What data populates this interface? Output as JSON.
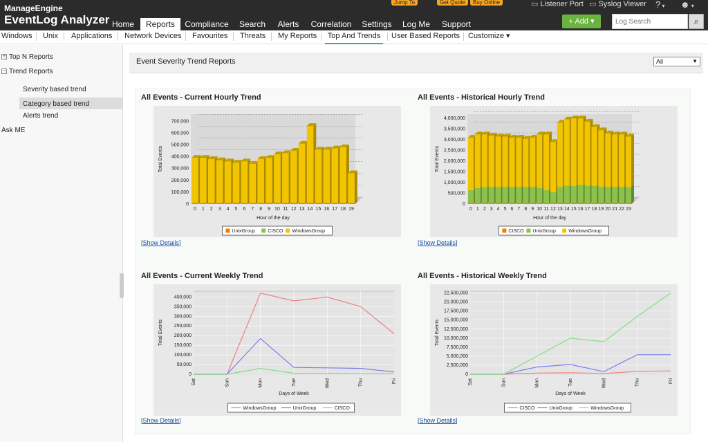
{
  "header": {
    "brand_top": "ManageEngine",
    "brand_main": "EventLog Analyzer",
    "top_pills": [
      "Jump To",
      "Get Quote",
      "Buy Online"
    ],
    "top_links": [
      "Listener Port",
      "Syslog Viewer",
      "?"
    ],
    "nav": [
      "Home",
      "Reports",
      "Compliance",
      "Search",
      "Alerts",
      "Correlation",
      "Settings",
      "Log Me",
      "Support"
    ],
    "active_nav": "Reports",
    "add_label": "+ Add ▾",
    "search_placeholder": "Log Search",
    "colors": {
      "topbar": "#2b2b2b",
      "accent": "#69b33e",
      "pill": "#f6a623"
    }
  },
  "subnav": {
    "items": [
      "Windows",
      "Unix",
      "Applications",
      "Network Devices",
      "Favourites",
      "Threats",
      "My Reports",
      "Top And Trends",
      "User Based Reports",
      "Customize ▾"
    ],
    "active": "Top And Trends"
  },
  "sidebar": {
    "top_n": "Top N Reports",
    "trend": "Trend Reports",
    "children": [
      "Severity based trend",
      "Category based trend",
      "Alerts trend"
    ],
    "selected": "Category based trend",
    "ask_me": "Ask ME"
  },
  "main": {
    "title": "Event Severity Trend Reports",
    "filter_value": "All",
    "show_details": "Show Details"
  },
  "chart_data": [
    {
      "type": "bar",
      "title": "All Events - Current Hourly Trend",
      "xlabel": "Hour of the day",
      "ylabel": "Total Events",
      "categories": [
        "0",
        "1",
        "2",
        "3",
        "4",
        "5",
        "6",
        "7",
        "8",
        "9",
        "10",
        "11",
        "12",
        "13",
        "14",
        "15",
        "16",
        "17",
        "18",
        "19"
      ],
      "series": [
        {
          "name": "UnixGroup",
          "color": "#f57c00",
          "values": [
            10000,
            10000,
            10000,
            10000,
            10000,
            10000,
            10000,
            10000,
            10000,
            10000,
            10000,
            10000,
            10000,
            10000,
            10000,
            10000,
            10000,
            10000,
            10000,
            10000
          ]
        },
        {
          "name": "CISCO",
          "color": "#8bc34a",
          "values": [
            0,
            0,
            0,
            0,
            0,
            0,
            0,
            0,
            0,
            0,
            0,
            0,
            0,
            0,
            0,
            0,
            0,
            0,
            0,
            0
          ]
        },
        {
          "name": "WindowsGroup",
          "color": "#f2c500",
          "values": [
            380000,
            380000,
            370000,
            360000,
            350000,
            340000,
            350000,
            330000,
            370000,
            380000,
            410000,
            420000,
            440000,
            500000,
            650000,
            450000,
            450000,
            460000,
            470000,
            250000
          ]
        }
      ],
      "yticks": [
        "0",
        "100,000",
        "200,000",
        "300,000",
        "400,000",
        "500,000",
        "600,000",
        "700,000"
      ],
      "ylim": [
        0,
        760000
      ]
    },
    {
      "type": "bar",
      "title": "All Events - Historical Hourly Trend",
      "xlabel": "Hour of the day",
      "ylabel": "Total Events",
      "categories": [
        "0",
        "1",
        "2",
        "3",
        "4",
        "5",
        "6",
        "7",
        "8",
        "9",
        "10",
        "11",
        "12",
        "13",
        "14",
        "15",
        "16",
        "17",
        "18",
        "19",
        "20",
        "21",
        "22",
        "23"
      ],
      "series": [
        {
          "name": "CISCO",
          "color": "#f57c00",
          "values": [
            50000,
            50000,
            50000,
            50000,
            50000,
            50000,
            50000,
            50000,
            50000,
            50000,
            50000,
            50000,
            50000,
            50000,
            50000,
            50000,
            50000,
            50000,
            50000,
            50000,
            50000,
            50000,
            50000,
            50000
          ]
        },
        {
          "name": "UnixGroup",
          "color": "#8bc34a",
          "values": [
            600000,
            700000,
            750000,
            750000,
            750000,
            750000,
            750000,
            750000,
            750000,
            750000,
            700000,
            600000,
            500000,
            750000,
            800000,
            800000,
            850000,
            800000,
            800000,
            750000,
            750000,
            750000,
            750000,
            750000
          ]
        },
        {
          "name": "WindowsGroup",
          "color": "#f2c500",
          "values": [
            2450000,
            2500000,
            2450000,
            2400000,
            2350000,
            2350000,
            2300000,
            2300000,
            2250000,
            2300000,
            2500000,
            2600000,
            2350000,
            3000000,
            3100000,
            3150000,
            3100000,
            3000000,
            2750000,
            2650000,
            2500000,
            2450000,
            2450000,
            2350000
          ]
        }
      ],
      "yticks": [
        "0",
        "500,000",
        "1,000,000",
        "1,500,000",
        "2,000,000",
        "2,500,000",
        "3,000,000",
        "3,500,000",
        "4,000,000"
      ],
      "ylim": [
        0,
        4200000
      ]
    },
    {
      "type": "line",
      "title": "All Events - Current Weekly Trend",
      "xlabel": "Days of Week",
      "ylabel": "Total Events",
      "categories": [
        "Sat",
        "Sun",
        "Mon",
        "Tue",
        "Wed",
        "Thu",
        "Fri"
      ],
      "series": [
        {
          "name": "WindowsGroup",
          "color": "#f08080",
          "values": [
            0,
            0,
            420000,
            380000,
            400000,
            350000,
            210000
          ]
        },
        {
          "name": "UnixGroup",
          "color": "#7b7bf0",
          "values": [
            0,
            0,
            185000,
            35000,
            33000,
            30000,
            12000
          ]
        },
        {
          "name": "CISCO",
          "color": "#80e080",
          "values": [
            0,
            0,
            30000,
            5000,
            5000,
            3000,
            2000
          ]
        }
      ],
      "yticks": [
        "0",
        "50,000",
        "100,000",
        "150,000",
        "200,000",
        "250,000",
        "300,000",
        "350,000",
        "400,000"
      ],
      "ylim": [
        0,
        430000
      ]
    },
    {
      "type": "line",
      "title": "All Events - Historical Weekly Trend",
      "xlabel": "Days of Week",
      "ylabel": "Total Events",
      "categories": [
        "Sat",
        "Sun",
        "Mon",
        "Tue",
        "Wed",
        "Thu",
        "Fri"
      ],
      "series": [
        {
          "name": "CISCO",
          "color": "#f08080",
          "values": [
            0,
            0,
            300000,
            400000,
            200000,
            800000,
            900000
          ]
        },
        {
          "name": "UnixGroup",
          "color": "#7b7bf0",
          "values": [
            0,
            0,
            2000000,
            2700000,
            700000,
            5400000,
            5400000
          ]
        },
        {
          "name": "WindowsGroup",
          "color": "#80e080",
          "values": [
            0,
            0,
            5000000,
            10000000,
            9000000,
            16000000,
            22500000
          ]
        }
      ],
      "yticks": [
        "0",
        "2,500,000",
        "5,000,000",
        "7,500,000",
        "10,000,000",
        "12,500,000",
        "15,000,000",
        "17,500,000",
        "20,000,000",
        "22,500,000"
      ],
      "ylim": [
        0,
        23000000
      ]
    }
  ]
}
